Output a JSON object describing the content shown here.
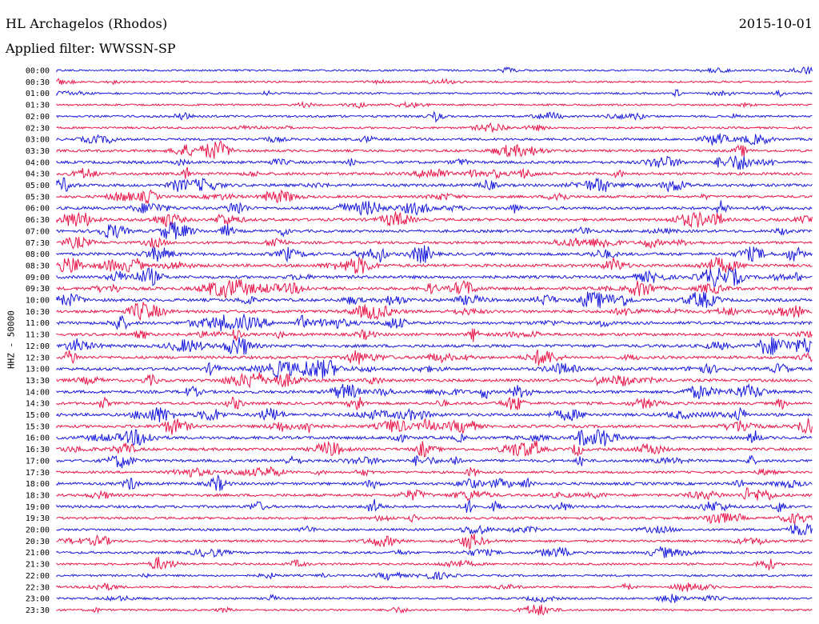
{
  "header": {
    "station": "HL Archagelos (Rhodos)",
    "date": "2015-10-01",
    "filter": "Applied filter: WWSSN-SP"
  },
  "chart_data": {
    "type": "line",
    "title": "HL Archagelos (Rhodos)",
    "subtitle": "Applied filter: WWSSN-SP",
    "ylabel": "HHZ - 50000",
    "xlabel": "",
    "grid": false,
    "colors": [
      "#1a1adc",
      "#e8174a"
    ],
    "row_labels": [
      "00:00",
      "00:30",
      "01:00",
      "01:30",
      "02:00",
      "02:30",
      "03:00",
      "03:30",
      "04:00",
      "04:30",
      "05:00",
      "05:30",
      "06:00",
      "06:30",
      "07:00",
      "07:30",
      "08:00",
      "08:30",
      "09:00",
      "09:30",
      "10:00",
      "10:30",
      "11:00",
      "11:30",
      "12:00",
      "12:30",
      "13:00",
      "13:30",
      "14:00",
      "14:30",
      "15:00",
      "15:30",
      "16:00",
      "16:30",
      "17:00",
      "17:30",
      "18:00",
      "18:30",
      "19:00",
      "19:30",
      "20:00",
      "20:30",
      "21:00",
      "21:30",
      "22:00",
      "22:30",
      "23:00",
      "23:30"
    ],
    "series_activity": [
      0.12,
      0.12,
      0.15,
      0.12,
      0.25,
      0.2,
      0.35,
      0.35,
      0.45,
      0.45,
      0.5,
      0.4,
      0.5,
      0.5,
      0.45,
      0.4,
      0.55,
      0.55,
      0.55,
      0.6,
      0.55,
      0.5,
      0.55,
      0.5,
      0.55,
      0.5,
      0.55,
      0.5,
      0.55,
      0.45,
      0.55,
      0.5,
      0.55,
      0.5,
      0.45,
      0.3,
      0.45,
      0.4,
      0.4,
      0.3,
      0.3,
      0.3,
      0.3,
      0.25,
      0.2,
      0.15,
      0.2,
      0.15
    ]
  }
}
